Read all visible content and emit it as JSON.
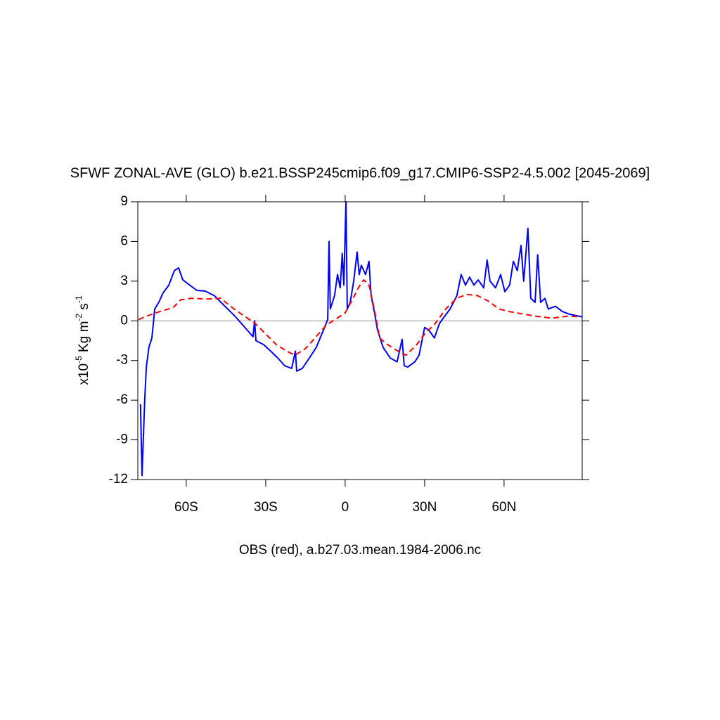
{
  "chart_data": {
    "type": "line",
    "title": "SFWF ZONAL-AVE (GLO) b.e21.BSSP245cmip6.f09_g17.CMIP6-SSP2-4.5.002 [2045-2069]",
    "subtitle": "OBS (red), a.b27.03.mean.1984-2006.nc",
    "ylabel": [
      "x10",
      "-5",
      " Kg m",
      "-2",
      " s",
      "-1"
    ],
    "xlim": [
      -78.3,
      89.5
    ],
    "ylim": [
      -12,
      9
    ],
    "xticks": [
      {
        "value": -60,
        "label": "60S"
      },
      {
        "value": -30,
        "label": "30S"
      },
      0,
      {
        "value": 30,
        "label": "30N"
      },
      {
        "value": 60,
        "label": "60N"
      }
    ],
    "yticks": [
      -12,
      -9,
      -6,
      -3,
      0,
      3,
      6,
      9
    ],
    "hline": 0,
    "series": [
      {
        "color": "#0000ff",
        "dashed": false,
        "x": [
          -77.3,
          -76.7,
          -75.7,
          -75.1,
          -74.1,
          -73,
          -71.9,
          -70.4,
          -68.8,
          -66.6,
          -64.5,
          -62.9,
          -61.3,
          -58.7,
          -56,
          -52.8,
          -49.4,
          -45.4,
          -41.4,
          -37.4,
          -34.8,
          -34.2,
          -33.7,
          -30.8,
          -28.1,
          -25.5,
          -22.8,
          -20.2,
          -18.8,
          -18.3,
          -16.2,
          -13.5,
          -10.9,
          -8.2,
          -6.6,
          -6.1,
          -5.6,
          -4,
          -2.9,
          -1.9,
          -1.1,
          -0.5,
          0.3,
          0.8,
          1.9,
          3.2,
          4.5,
          5.3,
          6.1,
          7.7,
          9,
          9.8,
          11.1,
          12.2,
          14.3,
          17,
          19.6,
          21.5,
          22.3,
          23.6,
          26.3,
          27.9,
          30,
          31.6,
          33.7,
          35.6,
          37.4,
          39.6,
          42.2,
          43.8,
          45.4,
          47,
          48.6,
          50.2,
          52.3,
          53.6,
          54.7,
          56.8,
          58.7,
          60.3,
          62.1,
          63.5,
          65,
          66.4,
          67.4,
          69,
          70.1,
          71.7,
          72.7,
          73.8,
          75.4,
          76.7,
          79.4,
          82,
          84.7,
          89.5
        ],
        "values": [
          -6.3,
          -11.7,
          -6,
          -3.5,
          -2,
          -1.3,
          0.9,
          1.4,
          2.1,
          2.7,
          3.8,
          4.0,
          3.1,
          2.7,
          2.3,
          2.25,
          1.9,
          1.1,
          0.3,
          -0.6,
          -1.2,
          0,
          -1.5,
          -1.8,
          -2.3,
          -2.8,
          -3.4,
          -3.6,
          -2.3,
          -3.8,
          -3.6,
          -2.8,
          -2,
          -0.7,
          0.1,
          6.0,
          0.9,
          1.9,
          3.5,
          2.5,
          5.1,
          2.7,
          9,
          0.9,
          1.4,
          3.0,
          5.2,
          3.5,
          4.2,
          3.5,
          4.5,
          1.9,
          0.6,
          -0.7,
          -2.0,
          -2.8,
          -3.1,
          -1.4,
          -3.4,
          -3.5,
          -3.1,
          -2.6,
          -0.5,
          -0.7,
          -1.3,
          -0.2,
          0.3,
          0.9,
          1.9,
          3.5,
          2.7,
          3.3,
          2.7,
          3.1,
          2.5,
          4.6,
          3.0,
          2.5,
          3.5,
          2.2,
          2.7,
          4.5,
          3.8,
          5.7,
          3.0,
          7.0,
          1.7,
          1.4,
          5.0,
          1.4,
          1.7,
          0.9,
          1.1,
          0.7,
          0.5,
          0.3
        ]
      },
      {
        "color": "#ff0000",
        "dashed": true,
        "x": [
          -78,
          -75,
          -70,
          -65,
          -62,
          -58,
          -52,
          -47,
          -42,
          -38,
          -34,
          -30,
          -26,
          -22,
          -19,
          -15,
          -11,
          -7,
          -3,
          0,
          3,
          5,
          7,
          9,
          11,
          13,
          16,
          20,
          23,
          27,
          30,
          34,
          38,
          42,
          46,
          50,
          54,
          58,
          62,
          66,
          72,
          78,
          84,
          89
        ],
        "values": [
          0.1,
          0.35,
          0.7,
          1.0,
          1.6,
          1.7,
          1.65,
          1.7,
          0.9,
          0.35,
          -0.2,
          -1.0,
          -1.8,
          -2.3,
          -2.6,
          -2.1,
          -1.2,
          -0.3,
          0.2,
          0.6,
          1.7,
          2.5,
          3.1,
          2.7,
          0.9,
          -1.3,
          -1.8,
          -2.3,
          -2.6,
          -1.8,
          -1.0,
          -0.2,
          0.9,
          1.7,
          2.0,
          1.9,
          1.5,
          0.9,
          0.7,
          0.55,
          0.35,
          0.2,
          0.35,
          0.3
        ]
      }
    ]
  }
}
